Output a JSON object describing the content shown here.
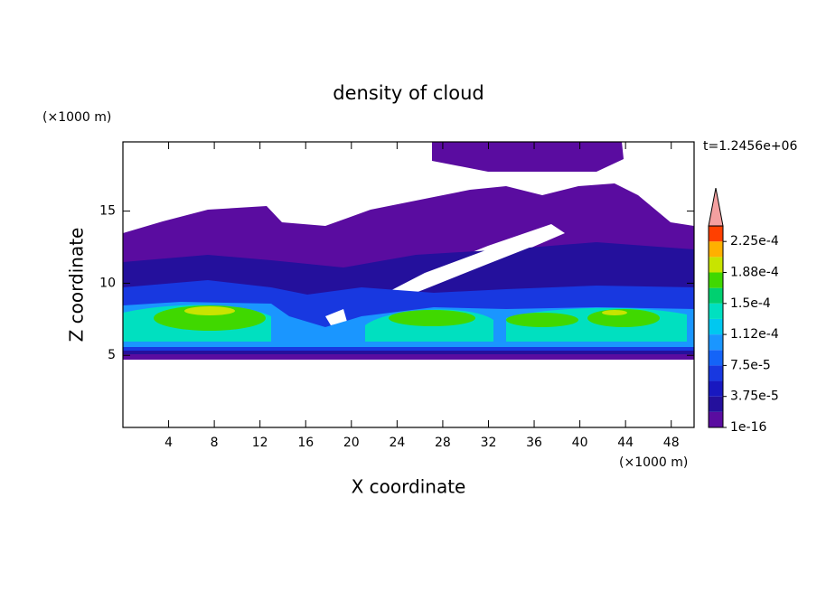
{
  "chart_data": {
    "type": "contour",
    "title": "density of cloud",
    "xlabel": "X coordinate",
    "ylabel": "Z coordinate",
    "xunit": "(×1000 m)",
    "yunit": "(×1000 m)",
    "time_label": "t=1.2456e+06",
    "xlim": [
      0,
      50
    ],
    "xticks": [
      4,
      8,
      12,
      16,
      20,
      24,
      28,
      32,
      36,
      40,
      44,
      48
    ],
    "ylim": [
      0,
      19.8
    ],
    "yticks": [
      5,
      10,
      15
    ],
    "colorbar": {
      "colors": [
        "#5a0ca0",
        "#24109c",
        "#1818c0",
        "#1838e0",
        "#1464f8",
        "#1a96ff",
        "#00c8f0",
        "#00e0c0",
        "#00d070",
        "#40d800",
        "#c8e400",
        "#ffb000",
        "#ff4000"
      ],
      "extend_color": "#f4a0a0",
      "ticks": [
        {
          "value": 1e-16,
          "label": "1e-16"
        },
        {
          "value": 3.75e-05,
          "label": "3.75e-5"
        },
        {
          "value": 7.5e-05,
          "label": "7.5e-5"
        },
        {
          "value": 0.000112,
          "label": "1.12e-4"
        },
        {
          "value": 0.00015,
          "label": "1.5e-4"
        },
        {
          "value": 0.000188,
          "label": "1.88e-4"
        },
        {
          "value": 0.000225,
          "label": "2.25e-4"
        }
      ]
    }
  }
}
